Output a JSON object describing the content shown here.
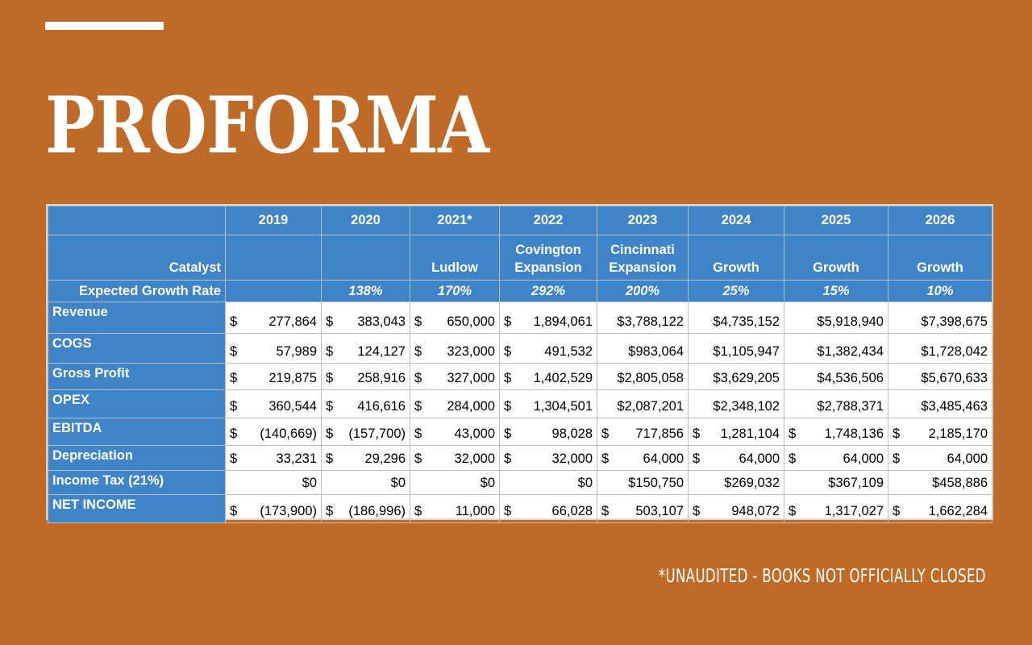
{
  "slide": {
    "title": "PROFORMA",
    "footnote": "*UNAUDITED - BOOKS NOT OFFICIALLY CLOSED"
  },
  "table": {
    "years": [
      "2019",
      "2020",
      "2021*",
      "2022",
      "2023",
      "2024",
      "2025",
      "2026"
    ],
    "catalyst_label": "Catalyst",
    "catalysts": [
      [
        "",
        ""
      ],
      [
        "",
        ""
      ],
      [
        "",
        "Ludlow"
      ],
      [
        "Covington",
        "Expansion"
      ],
      [
        "Cincinnati",
        "Expansion"
      ],
      [
        "",
        "Growth"
      ],
      [
        "",
        "Growth"
      ],
      [
        "",
        "Growth"
      ]
    ],
    "growth_label": "Expected Growth Rate",
    "growth_rates": [
      "",
      "138%",
      "170%",
      "292%",
      "200%",
      "25%",
      "15%",
      "10%"
    ],
    "rows": [
      {
        "label": "Revenue",
        "cells": [
          {
            "c": "$",
            "v": "277,864"
          },
          {
            "c": "$",
            "v": "383,043"
          },
          {
            "c": "$",
            "v": "650,000"
          },
          {
            "c": "$",
            "v": "1,894,061"
          },
          {
            "c": "",
            "v": "$3,788,122"
          },
          {
            "c": "",
            "v": "$4,735,152"
          },
          {
            "c": "",
            "v": "$5,918,940"
          },
          {
            "c": "",
            "v": "$7,398,675"
          }
        ]
      },
      {
        "label": "COGS",
        "cells": [
          {
            "c": "$",
            "v": "57,989"
          },
          {
            "c": "$",
            "v": "124,127"
          },
          {
            "c": "$",
            "v": "323,000"
          },
          {
            "c": "$",
            "v": "491,532"
          },
          {
            "c": "",
            "v": "$983,064"
          },
          {
            "c": "",
            "v": "$1,105,947"
          },
          {
            "c": "",
            "v": "$1,382,434"
          },
          {
            "c": "",
            "v": "$1,728,042"
          }
        ]
      },
      {
        "label": "Gross Profit",
        "cells": [
          {
            "c": "$",
            "v": "219,875"
          },
          {
            "c": "$",
            "v": "258,916"
          },
          {
            "c": "$",
            "v": "327,000"
          },
          {
            "c": "$",
            "v": "1,402,529"
          },
          {
            "c": "",
            "v": "$2,805,058"
          },
          {
            "c": "",
            "v": "$3,629,205"
          },
          {
            "c": "",
            "v": "$4,536,506"
          },
          {
            "c": "",
            "v": "$5,670,633"
          }
        ]
      },
      {
        "label": "OPEX",
        "cells": [
          {
            "c": "$",
            "v": "360,544"
          },
          {
            "c": "$",
            "v": "416,616"
          },
          {
            "c": "$",
            "v": "284,000"
          },
          {
            "c": "$",
            "v": "1,304,501"
          },
          {
            "c": "",
            "v": "$2,087,201"
          },
          {
            "c": "",
            "v": "$2,348,102"
          },
          {
            "c": "",
            "v": "$2,788,371"
          },
          {
            "c": "",
            "v": "$3,485,463"
          }
        ]
      },
      {
        "label": "EBITDA",
        "cells": [
          {
            "c": "$",
            "v": "(140,669)"
          },
          {
            "c": "$",
            "v": "(157,700)"
          },
          {
            "c": "$",
            "v": "43,000"
          },
          {
            "c": "$",
            "v": "98,028"
          },
          {
            "c": "$",
            "v": "717,856"
          },
          {
            "c": "$",
            "v": "1,281,104"
          },
          {
            "c": "$",
            "v": "1,748,136"
          },
          {
            "c": "$",
            "v": "2,185,170"
          }
        ]
      },
      {
        "label": "Depreciation",
        "cells": [
          {
            "c": "$",
            "v": "33,231"
          },
          {
            "c": "$",
            "v": "29,296"
          },
          {
            "c": "$",
            "v": "32,000"
          },
          {
            "c": "$",
            "v": "32,000"
          },
          {
            "c": "$",
            "v": "64,000"
          },
          {
            "c": "$",
            "v": "64,000"
          },
          {
            "c": "$",
            "v": "64,000"
          },
          {
            "c": "$",
            "v": "64,000"
          }
        ]
      },
      {
        "label": "Income Tax (21%)",
        "cells": [
          {
            "c": "",
            "v": "$0"
          },
          {
            "c": "",
            "v": "$0"
          },
          {
            "c": "",
            "v": "$0"
          },
          {
            "c": "",
            "v": "$0"
          },
          {
            "c": "",
            "v": "$150,750"
          },
          {
            "c": "",
            "v": "$269,032"
          },
          {
            "c": "",
            "v": "$367,109"
          },
          {
            "c": "",
            "v": "$458,886"
          }
        ]
      },
      {
        "label": "NET INCOME",
        "cells": [
          {
            "c": "$",
            "v": "(173,900)"
          },
          {
            "c": "$",
            "v": "(186,996)"
          },
          {
            "c": "$",
            "v": "11,000"
          },
          {
            "c": "$",
            "v": "66,028"
          },
          {
            "c": "$",
            "v": "503,107"
          },
          {
            "c": "$",
            "v": "948,072"
          },
          {
            "c": "$",
            "v": "1,317,027"
          },
          {
            "c": "$",
            "v": "1,662,284"
          }
        ]
      }
    ]
  }
}
